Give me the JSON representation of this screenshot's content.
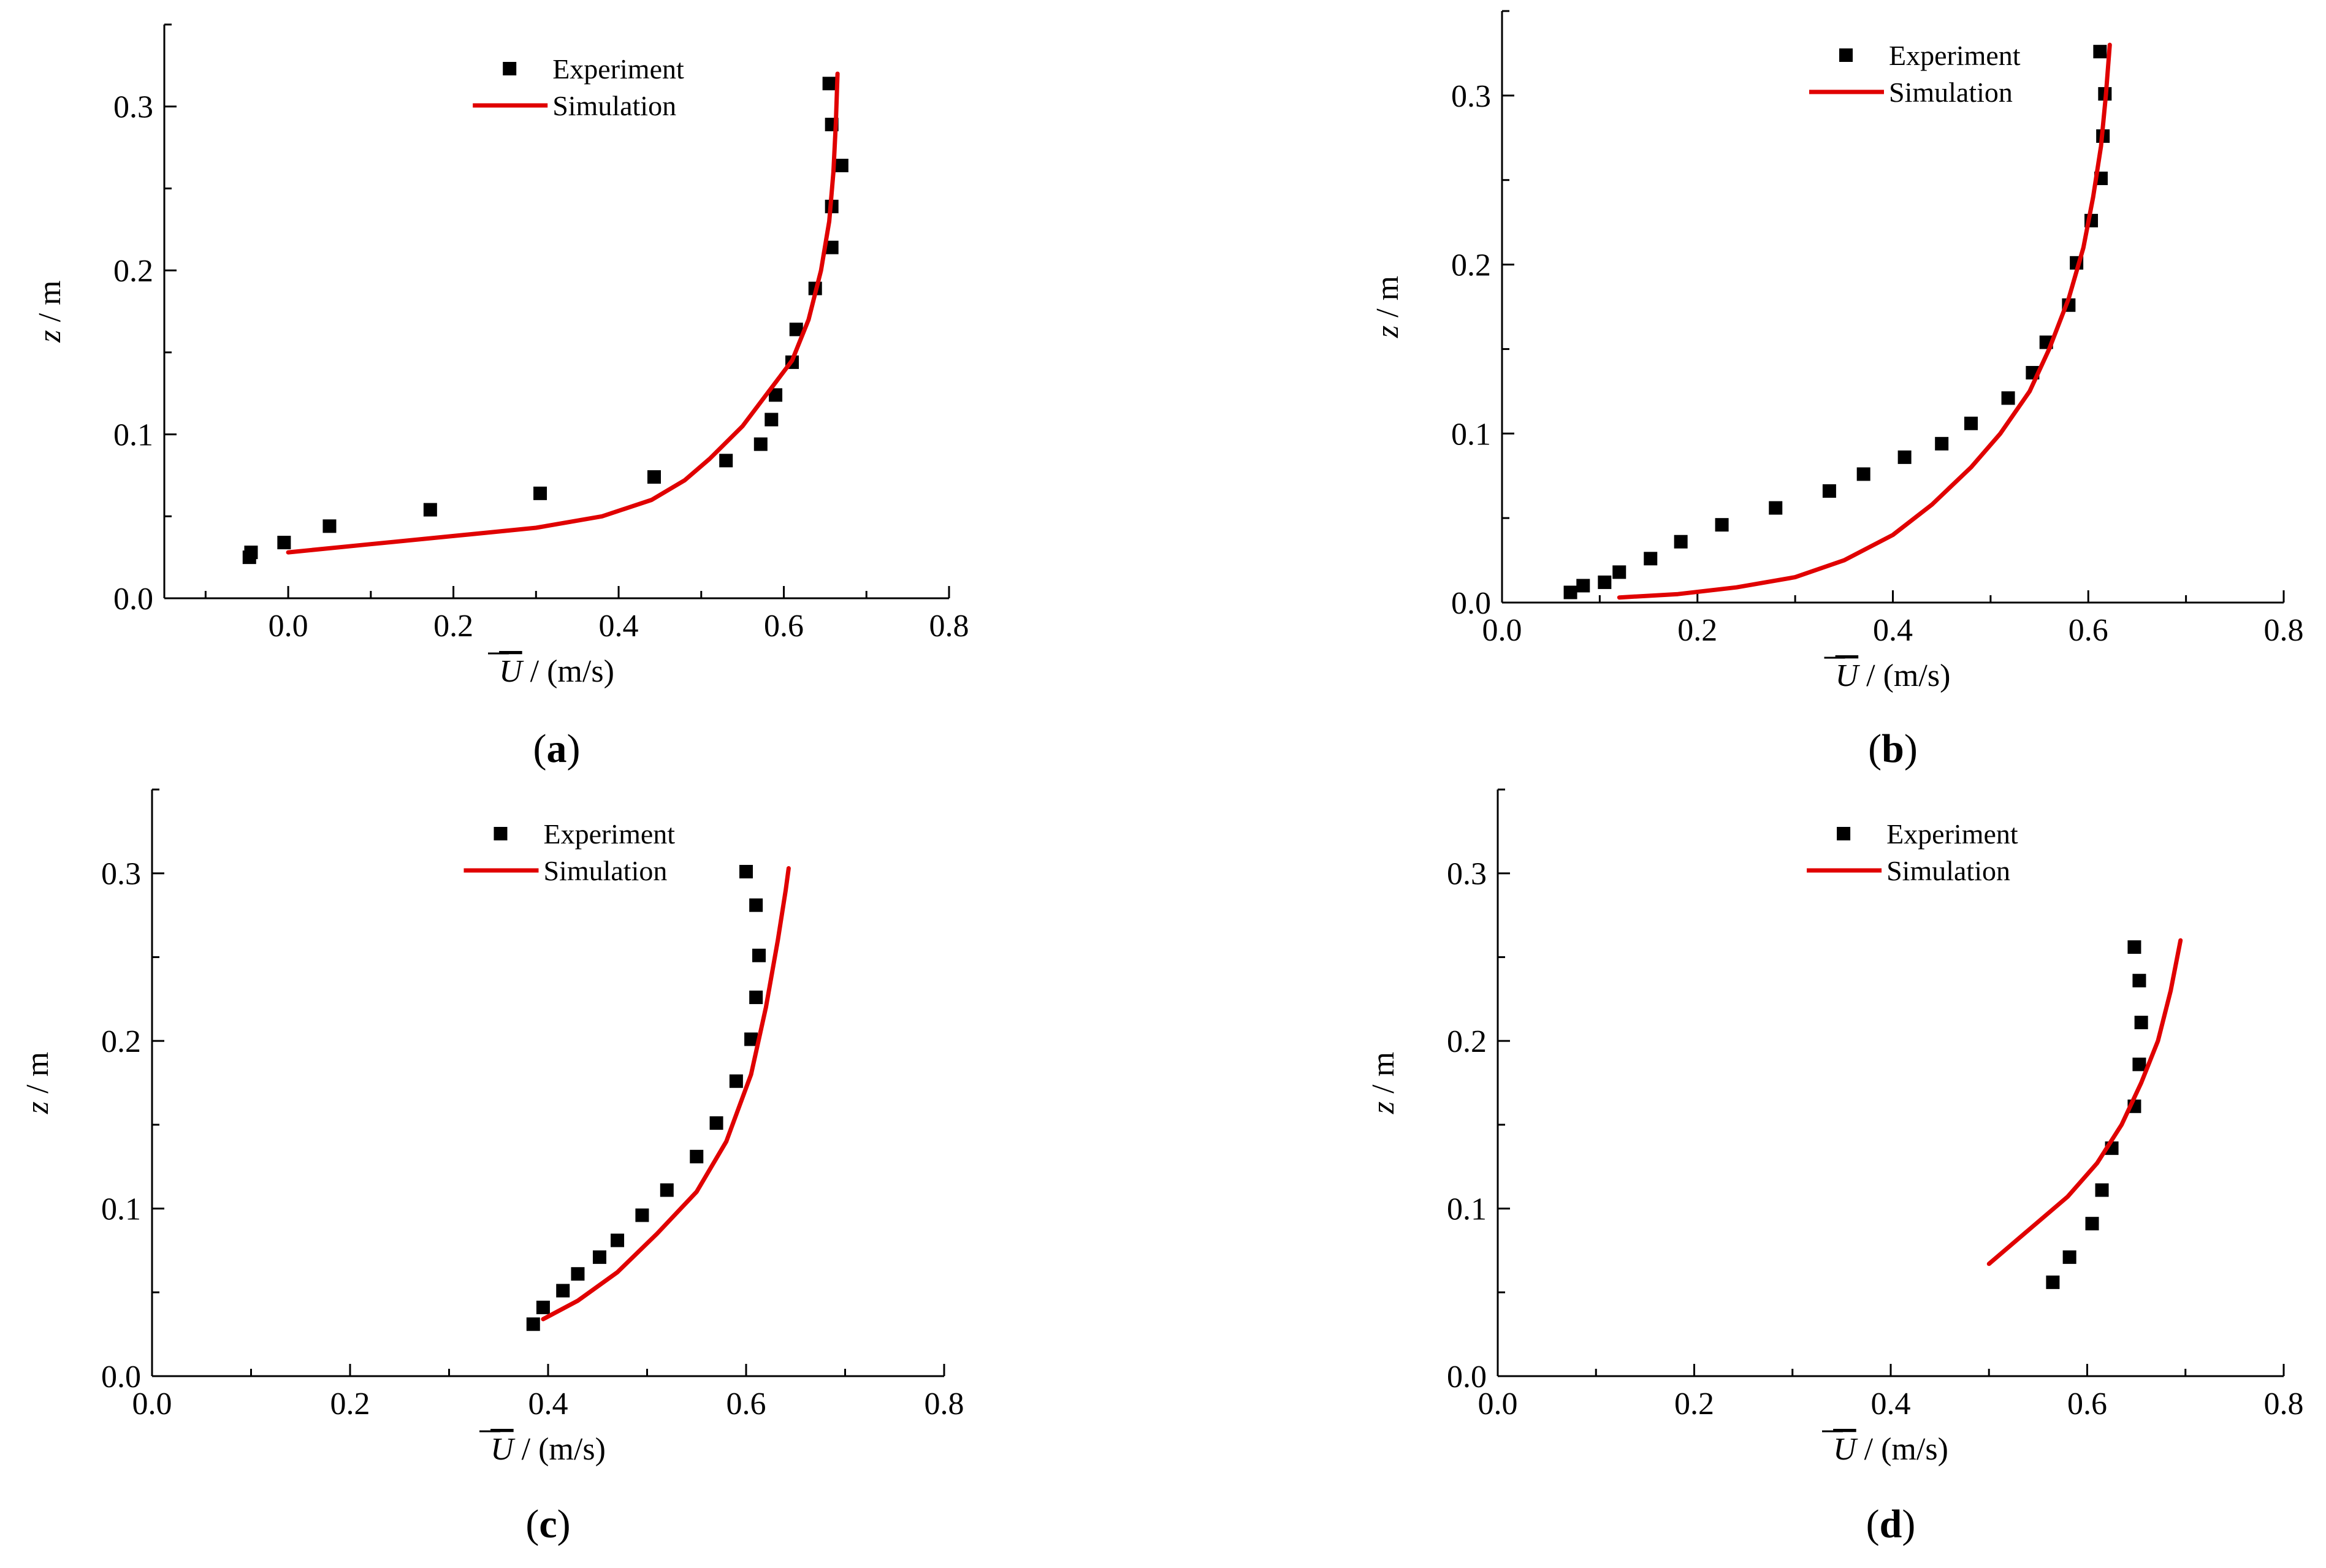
{
  "colors": {
    "experiment": "#000000",
    "simulation": "#e00000"
  },
  "axis_title_parts": {
    "x_var": "U",
    "x_unit": " / (m/s)",
    "y_var": "z",
    "y_unit": " / m"
  },
  "chart_data": [
    {
      "type": "scatter",
      "panel_label": "a",
      "xlabel": "U / (m/s)",
      "ylabel": "z / m",
      "xlim": [
        -0.15,
        0.8
      ],
      "ylim": [
        0.0,
        0.35
      ],
      "xticks": [
        "0.0",
        "0.2",
        "0.4",
        "0.6",
        "0.8"
      ],
      "yticks": [
        "0.0",
        "0.1",
        "0.2",
        "0.3"
      ],
      "legend": {
        "position": "top-center",
        "entries": [
          "Experiment",
          "Simulation"
        ]
      },
      "series": [
        {
          "name": "Experiment",
          "kind": "markers",
          "points": [
            [
              -0.047,
              0.025
            ],
            [
              -0.045,
              0.028
            ],
            [
              -0.005,
              0.034
            ],
            [
              0.05,
              0.044
            ],
            [
              0.172,
              0.054
            ],
            [
              0.305,
              0.064
            ],
            [
              0.443,
              0.074
            ],
            [
              0.53,
              0.084
            ],
            [
              0.572,
              0.094
            ],
            [
              0.585,
              0.109
            ],
            [
              0.59,
              0.124
            ],
            [
              0.61,
              0.144
            ],
            [
              0.615,
              0.164
            ],
            [
              0.638,
              0.189
            ],
            [
              0.658,
              0.214
            ],
            [
              0.658,
              0.239
            ],
            [
              0.67,
              0.264
            ],
            [
              0.658,
              0.289
            ],
            [
              0.655,
              0.314
            ]
          ]
        },
        {
          "name": "Simulation",
          "kind": "line",
          "points": [
            [
              0.0,
              0.028
            ],
            [
              0.1,
              0.033
            ],
            [
              0.2,
              0.038
            ],
            [
              0.3,
              0.043
            ],
            [
              0.38,
              0.05
            ],
            [
              0.44,
              0.06
            ],
            [
              0.48,
              0.072
            ],
            [
              0.51,
              0.085
            ],
            [
              0.55,
              0.105
            ],
            [
              0.58,
              0.125
            ],
            [
              0.61,
              0.145
            ],
            [
              0.63,
              0.17
            ],
            [
              0.645,
              0.2
            ],
            [
              0.655,
              0.23
            ],
            [
              0.66,
              0.26
            ],
            [
              0.663,
              0.29
            ],
            [
              0.665,
              0.32
            ]
          ]
        }
      ]
    },
    {
      "type": "scatter",
      "panel_label": "b",
      "xlabel": "U / (m/s)",
      "ylabel": "z / m",
      "xlim": [
        0.0,
        0.8
      ],
      "ylim": [
        0.0,
        0.35
      ],
      "xticks": [
        "0.0",
        "0.2",
        "0.4",
        "0.6",
        "0.8"
      ],
      "yticks": [
        "0.0",
        "0.1",
        "0.2",
        "0.3"
      ],
      "legend": {
        "position": "top-center",
        "entries": [
          "Experiment",
          "Simulation"
        ]
      },
      "series": [
        {
          "name": "Experiment",
          "kind": "markers",
          "points": [
            [
              0.07,
              0.006
            ],
            [
              0.083,
              0.01
            ],
            [
              0.105,
              0.012
            ],
            [
              0.12,
              0.018
            ],
            [
              0.152,
              0.026
            ],
            [
              0.183,
              0.036
            ],
            [
              0.225,
              0.046
            ],
            [
              0.28,
              0.056
            ],
            [
              0.335,
              0.066
            ],
            [
              0.37,
              0.076
            ],
            [
              0.412,
              0.086
            ],
            [
              0.45,
              0.094
            ],
            [
              0.48,
              0.106
            ],
            [
              0.518,
              0.121
            ],
            [
              0.543,
              0.136
            ],
            [
              0.557,
              0.154
            ],
            [
              0.58,
              0.176
            ],
            [
              0.588,
              0.201
            ],
            [
              0.603,
              0.226
            ],
            [
              0.613,
              0.251
            ],
            [
              0.615,
              0.276
            ],
            [
              0.617,
              0.301
            ],
            [
              0.612,
              0.326
            ]
          ]
        },
        {
          "name": "Simulation",
          "kind": "line",
          "points": [
            [
              0.12,
              0.003
            ],
            [
              0.18,
              0.005
            ],
            [
              0.24,
              0.009
            ],
            [
              0.3,
              0.015
            ],
            [
              0.35,
              0.025
            ],
            [
              0.4,
              0.04
            ],
            [
              0.44,
              0.058
            ],
            [
              0.48,
              0.08
            ],
            [
              0.51,
              0.1
            ],
            [
              0.54,
              0.125
            ],
            [
              0.56,
              0.15
            ],
            [
              0.58,
              0.18
            ],
            [
              0.595,
              0.21
            ],
            [
              0.605,
              0.24
            ],
            [
              0.613,
              0.27
            ],
            [
              0.618,
              0.3
            ],
            [
              0.622,
              0.33
            ]
          ]
        }
      ]
    },
    {
      "type": "scatter",
      "panel_label": "c",
      "xlabel": "U / (m/s)",
      "ylabel": "z / m",
      "xlim": [
        0.0,
        0.8
      ],
      "ylim": [
        0.0,
        0.35
      ],
      "xticks": [
        "0.0",
        "0.2",
        "0.4",
        "0.6",
        "0.8"
      ],
      "yticks": [
        "0.0",
        "0.1",
        "0.2",
        "0.3"
      ],
      "legend": {
        "position": "top-center",
        "entries": [
          "Experiment",
          "Simulation"
        ]
      },
      "series": [
        {
          "name": "Experiment",
          "kind": "markers",
          "points": [
            [
              0.385,
              0.031
            ],
            [
              0.395,
              0.041
            ],
            [
              0.415,
              0.051
            ],
            [
              0.43,
              0.061
            ],
            [
              0.452,
              0.071
            ],
            [
              0.47,
              0.081
            ],
            [
              0.495,
              0.096
            ],
            [
              0.52,
              0.111
            ],
            [
              0.55,
              0.131
            ],
            [
              0.57,
              0.151
            ],
            [
              0.59,
              0.176
            ],
            [
              0.605,
              0.201
            ],
            [
              0.61,
              0.226
            ],
            [
              0.613,
              0.251
            ],
            [
              0.61,
              0.281
            ],
            [
              0.6,
              0.301
            ]
          ]
        },
        {
          "name": "Simulation",
          "kind": "line",
          "points": [
            [
              0.395,
              0.034
            ],
            [
              0.43,
              0.045
            ],
            [
              0.47,
              0.062
            ],
            [
              0.51,
              0.085
            ],
            [
              0.55,
              0.11
            ],
            [
              0.58,
              0.14
            ],
            [
              0.605,
              0.18
            ],
            [
              0.62,
              0.22
            ],
            [
              0.632,
              0.26
            ],
            [
              0.64,
              0.29
            ],
            [
              0.643,
              0.303
            ]
          ]
        }
      ]
    },
    {
      "type": "scatter",
      "panel_label": "d",
      "xlabel": "U / (m/s)",
      "ylabel": "z / m",
      "xlim": [
        0.0,
        0.8
      ],
      "ylim": [
        0.0,
        0.35
      ],
      "xticks": [
        "0.0",
        "0.2",
        "0.4",
        "0.6",
        "0.8"
      ],
      "yticks": [
        "0.0",
        "0.1",
        "0.2",
        "0.3"
      ],
      "legend": {
        "position": "top-center",
        "entries": [
          "Experiment",
          "Simulation"
        ]
      },
      "series": [
        {
          "name": "Experiment",
          "kind": "markers",
          "points": [
            [
              0.565,
              0.056
            ],
            [
              0.582,
              0.071
            ],
            [
              0.605,
              0.091
            ],
            [
              0.615,
              0.111
            ],
            [
              0.625,
              0.136
            ],
            [
              0.648,
              0.161
            ],
            [
              0.653,
              0.186
            ],
            [
              0.655,
              0.211
            ],
            [
              0.653,
              0.236
            ],
            [
              0.648,
              0.256
            ]
          ]
        },
        {
          "name": "Simulation",
          "kind": "line",
          "points": [
            [
              0.5,
              0.067
            ],
            [
              0.54,
              0.087
            ],
            [
              0.58,
              0.107
            ],
            [
              0.61,
              0.127
            ],
            [
              0.635,
              0.15
            ],
            [
              0.655,
              0.175
            ],
            [
              0.672,
              0.2
            ],
            [
              0.685,
              0.23
            ],
            [
              0.695,
              0.26
            ]
          ]
        }
      ]
    }
  ]
}
